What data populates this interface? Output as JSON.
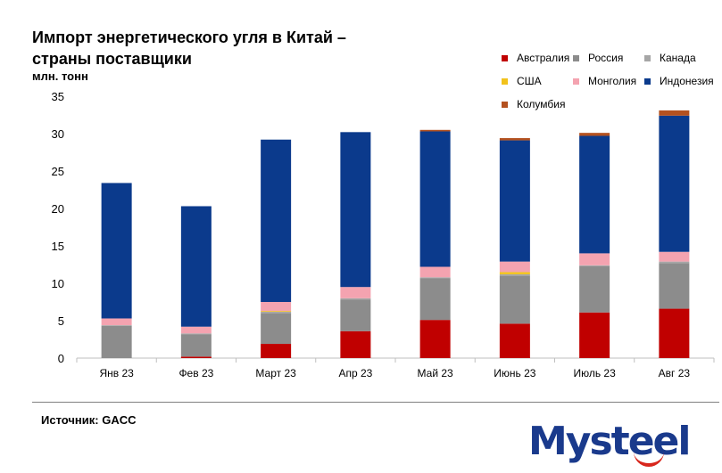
{
  "title_line1": "Импорт энергетического угля в Китай –",
  "title_line2": "страны поставщики",
  "unit": "млн. тонн",
  "source": "Источник: GACC",
  "logo": "Mysteel",
  "colors": {
    "australia": "#c00000",
    "russia": "#8c8c8c",
    "canada": "#a6a6a6",
    "usa": "#f2c21b",
    "mongolia": "#f4a3b0",
    "indonesia": "#0b3a8c",
    "colombia": "#b4511f",
    "grid": "#d9d9d9",
    "axis": "#bfbfbf"
  },
  "chart_data": {
    "type": "stacked-bar",
    "title": "Импорт энергетического угля в Китай – страны поставщики",
    "ylabel": "млн. тонн",
    "ylim": [
      0,
      35
    ],
    "yticks": [
      "0",
      "5",
      "10",
      "15",
      "20",
      "25",
      "30",
      "35"
    ],
    "categories": [
      "Янв 23",
      "Фев 23",
      "Март 23",
      "Апр 23",
      "Май 23",
      "Июнь 23",
      "Июль 23",
      "Авг 23"
    ],
    "series": [
      {
        "name": "Австралия",
        "key": "australia",
        "values": [
          0.0,
          0.2,
          1.9,
          3.6,
          5.1,
          4.6,
          6.1,
          6.6
        ]
      },
      {
        "name": "Россия",
        "key": "russia",
        "values": [
          4.3,
          3.0,
          4.1,
          4.2,
          5.6,
          6.4,
          6.2,
          6.1
        ]
      },
      {
        "name": "Канада",
        "key": "canada",
        "values": [
          0.1,
          0.1,
          0.2,
          0.2,
          0.1,
          0.2,
          0.1,
          0.2
        ]
      },
      {
        "name": "США",
        "key": "usa",
        "values": [
          0.0,
          0.0,
          0.1,
          0.0,
          0.0,
          0.3,
          0.0,
          0.0
        ]
      },
      {
        "name": "Монголия",
        "key": "mongolia",
        "values": [
          0.9,
          0.9,
          1.2,
          1.5,
          1.4,
          1.4,
          1.6,
          1.3
        ]
      },
      {
        "name": "Индонезия",
        "key": "indonesia",
        "values": [
          18.1,
          16.1,
          21.7,
          20.7,
          18.1,
          16.2,
          15.7,
          18.2
        ]
      },
      {
        "name": "Колумбия",
        "key": "colombia",
        "values": [
          0.0,
          0.0,
          0.0,
          0.0,
          0.2,
          0.3,
          0.4,
          0.7
        ]
      }
    ],
    "legend": "top-right",
    "grid": false
  }
}
